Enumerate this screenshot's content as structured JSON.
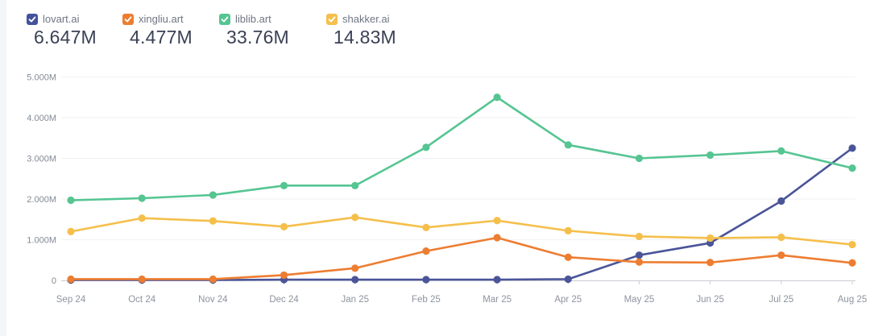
{
  "legend": {
    "items": [
      {
        "key": "lovart",
        "label": "lovart.ai",
        "value": "6.647M",
        "color": "#44529b",
        "checked": true
      },
      {
        "key": "xingliu",
        "label": "xingliu.art",
        "value": "4.477M",
        "color": "#ed7d31",
        "checked": true
      },
      {
        "key": "liblib",
        "label": "liblib.art",
        "value": "33.76M",
        "color": "#55c592",
        "checked": true
      },
      {
        "key": "shakker",
        "label": "shakker.ai",
        "value": "14.83M",
        "color": "#f5bf4b",
        "checked": true
      }
    ]
  },
  "chart_data": {
    "type": "line",
    "categories": [
      "Sep 24",
      "Oct 24",
      "Nov 24",
      "Dec 24",
      "Jan 25",
      "Feb 25",
      "Mar 25",
      "Apr 25",
      "May 25",
      "Jun 25",
      "Jul 25",
      "Aug 25"
    ],
    "series": [
      {
        "name": "lovart.ai",
        "key": "lovart",
        "color": "#4a5599",
        "values": [
          0.01,
          0.01,
          0.01,
          0.02,
          0.02,
          0.02,
          0.02,
          0.03,
          0.62,
          0.92,
          1.95,
          3.25
        ]
      },
      {
        "name": "xingliu.art",
        "key": "xingliu",
        "color": "#ed7d31",
        "values": [
          0.03,
          0.03,
          0.03,
          0.13,
          0.3,
          0.72,
          1.05,
          0.57,
          0.45,
          0.44,
          0.62,
          0.43
        ]
      },
      {
        "name": "liblib.art",
        "key": "liblib",
        "color": "#55c592",
        "values": [
          1.97,
          2.02,
          2.1,
          2.33,
          2.33,
          3.27,
          4.5,
          3.33,
          3.0,
          3.08,
          3.18,
          2.76
        ]
      },
      {
        "name": "shakker.ai",
        "key": "shakker",
        "color": "#f5bf4b",
        "values": [
          1.2,
          1.53,
          1.46,
          1.32,
          1.55,
          1.3,
          1.47,
          1.22,
          1.08,
          1.04,
          1.06,
          0.88
        ]
      }
    ],
    "yticks": [
      {
        "value": 0,
        "label": "0"
      },
      {
        "value": 1,
        "label": "1.000M"
      },
      {
        "value": 2,
        "label": "2.000M"
      },
      {
        "value": 3,
        "label": "3.000M"
      },
      {
        "value": 4,
        "label": "4.000M"
      },
      {
        "value": 5,
        "label": "5.000M"
      }
    ],
    "ylim": [
      0,
      5
    ],
    "grid": true,
    "legend_position": "top-left",
    "title": "",
    "xlabel": "",
    "ylabel": ""
  }
}
